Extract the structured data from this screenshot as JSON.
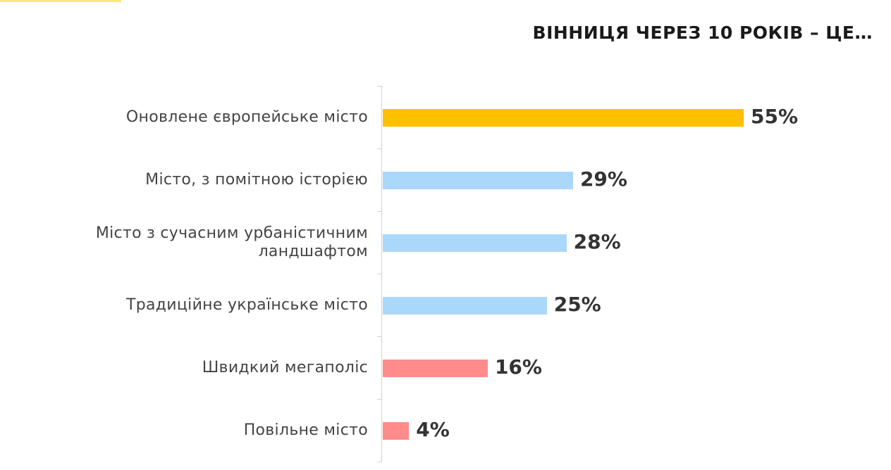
{
  "chart_data": {
    "type": "bar",
    "orientation": "horizontal",
    "title": "ВІННИЦЯ ЧЕРЕЗ 10 РОКІВ – ЦЕ…",
    "categories": [
      "Оновлене європейське місто",
      "Місто, з помітною історією",
      "Місто з сучасним урбаністичним ландшафтом",
      "Традиційне українське місто",
      "Швидкий мегаполіс",
      "Повільне місто"
    ],
    "values": [
      55,
      29,
      28,
      25,
      16,
      4
    ],
    "value_labels": [
      "55%",
      "29%",
      "28%",
      "25%",
      "16%",
      "4%"
    ],
    "colors": [
      "#ffc000",
      "#a9d8fa",
      "#a9d8fa",
      "#a9d8fa",
      "#ff8b8b",
      "#ff8b8b"
    ]
  }
}
